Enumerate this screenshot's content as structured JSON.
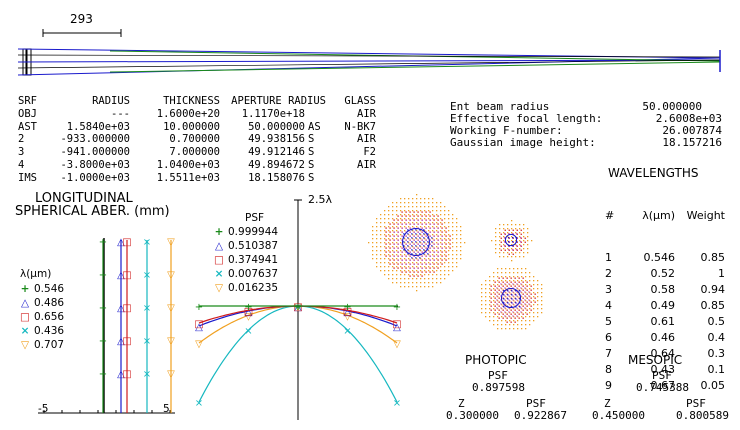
{
  "scale_bar": {
    "label": "293"
  },
  "surface_table": {
    "headers": [
      "SRF",
      "RADIUS",
      "THICKNESS",
      "APERTURE RADIUS",
      "GLASS"
    ],
    "rows": [
      [
        "OBJ",
        "---",
        "1.6000e+20",
        "1.1170e+18",
        "",
        "AIR"
      ],
      [
        "AST",
        "1.5840e+03",
        "10.000000",
        "50.000000",
        "AS",
        "N-BK7"
      ],
      [
        "2",
        "-933.000000",
        "0.700000",
        "49.938156",
        "S",
        "AIR"
      ],
      [
        "3",
        "-941.000000",
        "7.000000",
        "49.912146",
        "S",
        "F2"
      ],
      [
        "4",
        "-3.8000e+03",
        "1.0400e+03",
        "49.894672",
        "S",
        "AIR"
      ],
      [
        "IMS",
        "-1.0000e+03",
        "1.5511e+03",
        "18.158076",
        "S",
        ""
      ]
    ]
  },
  "system": {
    "ent_beam_radius_label": "Ent beam radius",
    "ent_beam_radius": "50.000000",
    "efl_label": "Effective focal length:",
    "efl": "2.6008e+03",
    "fnum_label": "Working F-number:",
    "fnum": "26.007874",
    "gih_label": "Gaussian image height:",
    "gih": "18.157216"
  },
  "wavelengths": {
    "title": "WAVELENGTHS",
    "headers": [
      "#",
      "λ(μm)",
      "Weight"
    ],
    "rows": [
      [
        "1",
        "0.546",
        "0.85"
      ],
      [
        "2",
        "0.52",
        "1"
      ],
      [
        "3",
        "0.58",
        "0.94"
      ],
      [
        "4",
        "0.49",
        "0.85"
      ],
      [
        "5",
        "0.61",
        "0.5"
      ],
      [
        "6",
        "0.46",
        "0.4"
      ],
      [
        "7",
        "0.64",
        "0.3"
      ],
      [
        "8",
        "0.43",
        "0.1"
      ],
      [
        "9",
        "0.67",
        "0.05"
      ]
    ]
  },
  "long_sa": {
    "title1": "LONGITUDINAL",
    "title2": "SPHERICAL ABER. (mm)",
    "legend_title": "λ(μm)",
    "xmin_label": "-5",
    "xmax_label": "5",
    "series": [
      {
        "label": "0.546",
        "color": "#1a8a1a",
        "symbol": "+"
      },
      {
        "label": "0.486",
        "color": "#1a1acc",
        "symbol": "△"
      },
      {
        "label": "0.656",
        "color": "#d01c1c",
        "symbol": "□"
      },
      {
        "label": "0.436",
        "color": "#16b8c0",
        "symbol": "×"
      },
      {
        "label": "0.707",
        "color": "#f0a020",
        "symbol": "▽"
      }
    ]
  },
  "opd": {
    "y_label": "2.5λ",
    "psf_title": "PSF",
    "psf_values": [
      "0.999944",
      "0.510387",
      "0.374941",
      "0.007637",
      "0.016235"
    ]
  },
  "photopic": {
    "title": "PHOTOPIC",
    "psf_label": "PSF",
    "psf": "0.897598",
    "z_label": "Z",
    "z": "0.300000",
    "psf2_label": "PSF",
    "psf2": "0.922867"
  },
  "mesopic": {
    "title": "MESOPIC",
    "psf_label": "PSF",
    "psf": "0.745388",
    "z_label": "Z",
    "z": "0.450000",
    "psf2_label": "PSF",
    "psf2": "0.800589"
  }
}
